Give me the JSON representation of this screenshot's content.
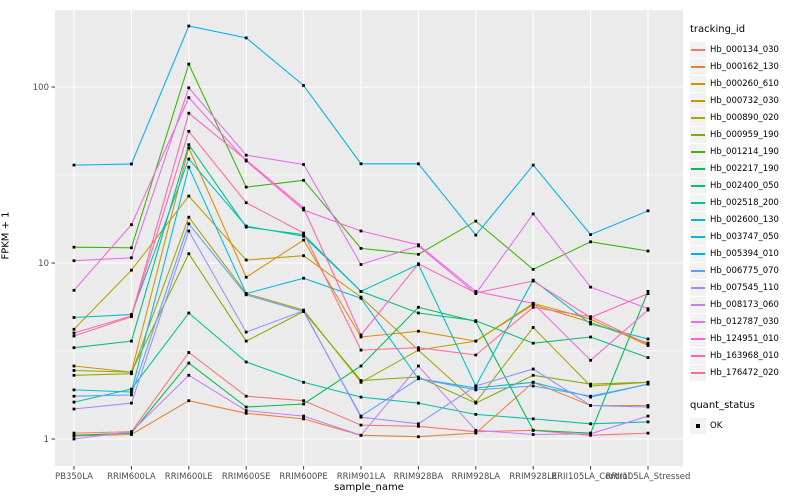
{
  "figure": {
    "y_axis_title": "FPKM + 1",
    "x_axis_title": "sample_name",
    "legend_tracking_title": "tracking_id",
    "legend_quant_title": "quant_status",
    "legend_quant_ok_label": "OK",
    "panel_background": "#EBEBEB",
    "gridline_color": "#FFFFFF",
    "tick_label_color": "#4D4D4D",
    "point_color": "#000000"
  },
  "chart_data": {
    "type": "line",
    "title": "",
    "xlabel": "sample_name",
    "ylabel": "FPKM + 1",
    "yscale": "log10",
    "ylim": [
      0.71,
      274
    ],
    "y_major_ticks": [
      1,
      10,
      100
    ],
    "y_tick_labels": [
      "1",
      "10",
      "100"
    ],
    "y_minor_gridlines": [
      3.162,
      31.62
    ],
    "grid": "on",
    "legend_position": "right",
    "point_shape": "black-square",
    "x_categories": [
      "PB350LA",
      "RRIM600LA",
      "RRIM600LE",
      "RRIM600SE",
      "RRIM600PE",
      "RRIM901LA",
      "RRIM928BA",
      "RRIM928LA",
      "RRIM928LE",
      "RRII105LA_Control",
      "RRII105LA_Stressed"
    ],
    "series": [
      {
        "name": "Hb_000134_030",
        "color": "#F8766D",
        "values": [
          1.08,
          1.1,
          3.1,
          1.75,
          1.65,
          1.2,
          1.18,
          1.1,
          1.12,
          1.05,
          1.08
        ]
      },
      {
        "name": "Hb_000162_130",
        "color": "#EA8331",
        "values": [
          1.04,
          1.06,
          1.65,
          1.4,
          1.3,
          1.05,
          1.03,
          1.08,
          2.1,
          1.55,
          1.55
        ]
      },
      {
        "name": "Hb_000260_610",
        "color": "#D89000",
        "values": [
          2.6,
          2.4,
          45,
          8.3,
          13.5,
          3.8,
          4.1,
          3.6,
          5.8,
          4.6,
          3.5
        ]
      },
      {
        "name": "Hb_000732_030",
        "color": "#C09B00",
        "values": [
          4.2,
          9.1,
          24,
          10.4,
          11.0,
          6.4,
          3.2,
          3.6,
          5.9,
          4.8,
          3.4
        ]
      },
      {
        "name": "Hb_000890_020",
        "color": "#A3A500",
        "values": [
          2.3,
          2.35,
          18.2,
          6.7,
          5.4,
          2.1,
          3.2,
          1.62,
          4.3,
          2.0,
          2.1
        ]
      },
      {
        "name": "Hb_000959_190",
        "color": "#7CAE00",
        "values": [
          2.45,
          2.4,
          11.3,
          3.6,
          5.3,
          2.15,
          2.25,
          1.6,
          2.3,
          2.05,
          2.1
        ]
      },
      {
        "name": "Hb_001214_190",
        "color": "#39B600",
        "values": [
          12.3,
          12.2,
          135,
          27,
          29.5,
          12.1,
          11.2,
          17.3,
          9.2,
          13.2,
          11.7
        ]
      },
      {
        "name": "Hb_002217_190",
        "color": "#00BB4E",
        "values": [
          1.05,
          1.08,
          2.7,
          1.52,
          1.58,
          2.6,
          5.6,
          4.65,
          1.12,
          1.08,
          6.9
        ]
      },
      {
        "name": "Hb_002400_050",
        "color": "#00BF7D",
        "values": [
          3.3,
          3.6,
          47,
          16,
          14.5,
          6.9,
          5.2,
          4.7,
          3.5,
          3.8,
          2.9
        ]
      },
      {
        "name": "Hb_002518_200",
        "color": "#00C1A3",
        "values": [
          1.62,
          1.92,
          5.2,
          2.74,
          2.1,
          1.73,
          1.6,
          1.38,
          1.3,
          1.22,
          1.25
        ]
      },
      {
        "name": "Hb_002600_130",
        "color": "#00BFC4",
        "values": [
          4.9,
          5.1,
          39,
          16.2,
          14.2,
          6.9,
          9.8,
          2.0,
          8.0,
          4.5,
          3.7
        ]
      },
      {
        "name": "Hb_003747_050",
        "color": "#00BADE",
        "values": [
          1.9,
          1.85,
          35,
          6.7,
          8.2,
          6.3,
          2.2,
          1.95,
          2.1,
          1.73,
          2.05
        ]
      },
      {
        "name": "Hb_005394_010",
        "color": "#00B0F6",
        "values": [
          36,
          36.5,
          222,
          190,
          102,
          36.6,
          36.6,
          14.4,
          36,
          14.5,
          19.8
        ]
      },
      {
        "name": "Hb_006775_070",
        "color": "#619CFF",
        "values": [
          1.75,
          1.78,
          16.7,
          6.6,
          5.3,
          1.35,
          2.2,
          1.9,
          2.0,
          1.75,
          2.05
        ]
      },
      {
        "name": "Hb_007545_110",
        "color": "#9590FF",
        "values": [
          1.48,
          1.6,
          15.2,
          4.05,
          5.35,
          1.33,
          1.22,
          2.0,
          2.5,
          1.55,
          1.52
        ]
      },
      {
        "name": "Hb_008173_060",
        "color": "#C77CFF",
        "values": [
          1.0,
          1.1,
          2.3,
          1.45,
          1.35,
          1.05,
          2.6,
          1.12,
          1.06,
          1.07,
          1.35
        ]
      },
      {
        "name": "Hb_012787_030",
        "color": "#E76BF3",
        "values": [
          10.3,
          10.7,
          99,
          41,
          36.3,
          9.8,
          12.5,
          6.7,
          19,
          7.3,
          5.5
        ]
      },
      {
        "name": "Hb_124951_010",
        "color": "#FA62DB",
        "values": [
          7.0,
          16.5,
          87,
          38,
          20,
          15.2,
          12.7,
          6.9,
          5.9,
          2.8,
          5.4
        ]
      },
      {
        "name": "Hb_163968_010",
        "color": "#FF62BC",
        "values": [
          4.0,
          5.0,
          71,
          38.5,
          20.5,
          3.9,
          9.9,
          6.75,
          7.9,
          4.9,
          6.7
        ]
      },
      {
        "name": "Hb_176472_020",
        "color": "#FF6A98",
        "values": [
          3.85,
          4.95,
          56,
          22,
          14.8,
          3.2,
          3.3,
          3.0,
          5.6,
          4.95,
          3.45
        ]
      }
    ],
    "quant_status_series": [
      {
        "label": "OK",
        "marker": "black-square"
      }
    ]
  }
}
